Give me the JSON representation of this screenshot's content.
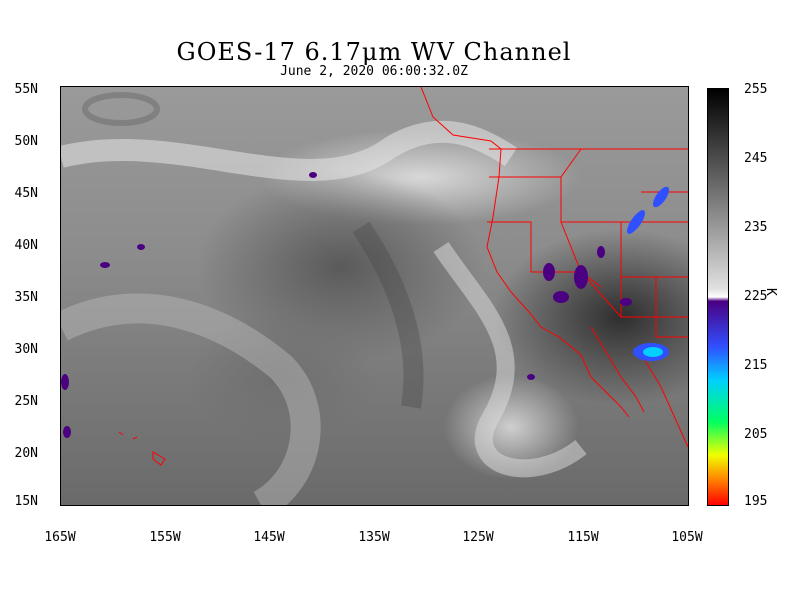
{
  "title": "GOES-17  6.17μm WV Channel",
  "subtitle": "June  2, 2020 06:00:32.0Z",
  "map": {
    "lat_labels": [
      "55N",
      "50N",
      "45N",
      "40N",
      "35N",
      "30N",
      "25N",
      "20N",
      "15N"
    ],
    "lon_labels": [
      "165W",
      "155W",
      "145W",
      "135W",
      "125W",
      "115W",
      "105W"
    ],
    "lat_range": [
      15,
      55
    ],
    "lon_range": [
      -165,
      -105
    ],
    "border_color": "#ff0000"
  },
  "colorbar": {
    "labels": [
      "255",
      "245",
      "235",
      "225",
      "215",
      "205",
      "195"
    ],
    "unit": "K",
    "range": [
      195,
      255
    ]
  }
}
